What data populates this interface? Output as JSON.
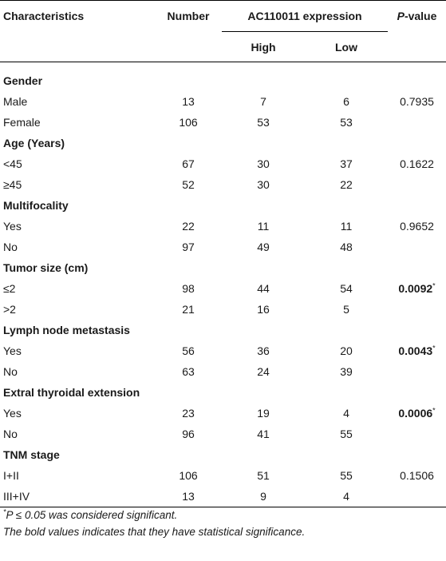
{
  "header": {
    "characteristics": "Characteristics",
    "number": "Number",
    "expression": "AC110011 expression",
    "high": "High",
    "low": "Low",
    "p_italic": "P",
    "p_rest": "-value"
  },
  "groups": [
    {
      "title": "Gender",
      "rows": [
        {
          "label": "Male",
          "number": "13",
          "high": "7",
          "low": "6",
          "p": "0.7935",
          "bold": false
        },
        {
          "label": "Female",
          "number": "106",
          "high": "53",
          "low": "53",
          "p": "",
          "bold": false
        }
      ]
    },
    {
      "title": "Age (Years)",
      "rows": [
        {
          "label": "<45",
          "number": "67",
          "high": "30",
          "low": "37",
          "p": "0.1622",
          "bold": false
        },
        {
          "label": "≥45",
          "number": "52",
          "high": "30",
          "low": "22",
          "p": "",
          "bold": false
        }
      ]
    },
    {
      "title": "Multifocality",
      "rows": [
        {
          "label": "Yes",
          "number": "22",
          "high": "11",
          "low": "11",
          "p": "0.9652",
          "bold": false
        },
        {
          "label": "No",
          "number": "97",
          "high": "49",
          "low": "48",
          "p": "",
          "bold": false
        }
      ]
    },
    {
      "title": "Tumor size (cm)",
      "rows": [
        {
          "label": "≤2",
          "number": "98",
          "high": "44",
          "low": "54",
          "p": "0.0092",
          "bold": true
        },
        {
          "label": ">2",
          "number": "21",
          "high": "16",
          "low": "5",
          "p": "",
          "bold": false
        }
      ]
    },
    {
      "title": "Lymph node metastasis",
      "rows": [
        {
          "label": "Yes",
          "number": "56",
          "high": "36",
          "low": "20",
          "p": "0.0043",
          "bold": true
        },
        {
          "label": "No",
          "number": "63",
          "high": "24",
          "low": "39",
          "p": "",
          "bold": false
        }
      ]
    },
    {
      "title": "Extral thyroidal extension",
      "rows": [
        {
          "label": "Yes",
          "number": "23",
          "high": "19",
          "low": "4",
          "p": "0.0006",
          "bold": true
        },
        {
          "label": "No",
          "number": "96",
          "high": "41",
          "low": "55",
          "p": "",
          "bold": false
        }
      ]
    },
    {
      "title": "TNM stage",
      "rows": [
        {
          "label": "I+II",
          "number": "106",
          "high": "51",
          "low": "55",
          "p": "0.1506",
          "bold": false
        },
        {
          "label": "III+IV",
          "number": "13",
          "high": "9",
          "low": "4",
          "p": "",
          "bold": false
        }
      ]
    }
  ],
  "significance_marker": "*",
  "notes": {
    "note1_star": "*",
    "note1_p": "P",
    "note1_rest": " ≤ 0.05 was considered significant.",
    "note2": "The bold values indicates that they have statistical significance."
  }
}
